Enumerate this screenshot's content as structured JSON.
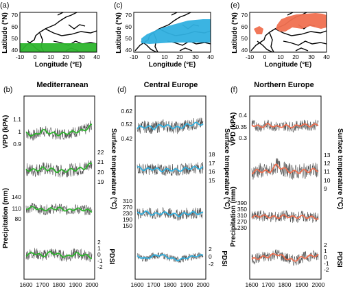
{
  "panels": [
    {
      "map_label": "(a)",
      "series_label": "(b)",
      "title": "Mediterranean",
      "color": "#2db52d",
      "vpd_ticks": [
        "1.1",
        "1",
        "0.9"
      ],
      "temp_ticks": [
        "22",
        "21",
        "20",
        "19"
      ],
      "precip_ticks": [
        "140",
        "110",
        "80"
      ],
      "pdsi_ticks": [
        "2",
        "1",
        "0",
        "-1",
        "-2"
      ]
    },
    {
      "map_label": "(c)",
      "series_label": "(d)",
      "title": "Central Europe",
      "color": "#30b0e0",
      "vpd_ticks": [
        "0.62",
        "0.52",
        "0.42"
      ],
      "temp_ticks": [
        "18",
        "17",
        "16",
        "15"
      ],
      "precip_ticks": [
        "310",
        "270",
        "230",
        "190",
        "150"
      ],
      "pdsi_ticks": [
        "2",
        "0",
        "-2"
      ]
    },
    {
      "map_label": "(e)",
      "series_label": "(f)",
      "title": "Northern Europe",
      "color": "#f07050",
      "vpd_ticks": [
        "0.4",
        "0.35",
        "0.3"
      ],
      "temp_ticks": [
        "13",
        "12",
        "11",
        "10",
        "9"
      ],
      "precip_ticks": [
        "390",
        "350",
        "310",
        "270",
        "230"
      ],
      "pdsi_ticks": [
        "2",
        "1",
        "0",
        "-1",
        "-2"
      ]
    }
  ],
  "map_axes": {
    "lat_label": "Latitude (°N)",
    "lon_label": "Longitude (°E)",
    "lat_ticks": [
      "70",
      "60",
      "50",
      "40"
    ],
    "lon_ticks": [
      "-10",
      "0",
      "10",
      "20",
      "30",
      "40"
    ]
  },
  "series_axes": {
    "vpd_label": "VPD (kPA)",
    "temp_label": "Surface temperature (°C)",
    "precip_label": "Precipitation (mm)",
    "pdsi_label": "PDSI",
    "year_ticks": [
      "1600",
      "1700",
      "1800",
      "1900",
      "2000"
    ]
  },
  "chart_data": {
    "type": "line",
    "x_range": [
      1600,
      2000
    ],
    "series": [
      {
        "region": "Mediterranean",
        "variable": "VPD (kPA)",
        "x": [
          1600,
          1650,
          1700,
          1750,
          1800,
          1850,
          1900,
          1950,
          2000
        ],
        "y": [
          1.0,
          0.98,
          1.02,
          1.0,
          0.99,
          1.0,
          1.01,
          1.02,
          1.06
        ]
      },
      {
        "region": "Mediterranean",
        "variable": "Surface temperature (°C)",
        "x": [
          1600,
          1650,
          1700,
          1750,
          1800,
          1850,
          1900,
          1950,
          2000
        ],
        "y": [
          20.3,
          20.2,
          20.4,
          20.3,
          20.1,
          20.2,
          20.3,
          20.4,
          20.9
        ]
      },
      {
        "region": "Mediterranean",
        "variable": "Precipitation (mm)",
        "x": [
          1600,
          1650,
          1700,
          1750,
          1800,
          1850,
          1900,
          1950,
          2000
        ],
        "y": [
          110,
          112,
          105,
          108,
          110,
          104,
          108,
          106,
          102
        ]
      },
      {
        "region": "Mediterranean",
        "variable": "PDSI",
        "x": [
          1600,
          1650,
          1700,
          1750,
          1800,
          1850,
          1900,
          1950,
          2000
        ],
        "y": [
          0,
          0.3,
          -0.2,
          0.4,
          0,
          -0.3,
          0.2,
          0,
          -0.4
        ]
      },
      {
        "region": "Central Europe",
        "variable": "VPD (kPA)",
        "x": [
          1600,
          1650,
          1700,
          1750,
          1800,
          1850,
          1900,
          1950,
          2000
        ],
        "y": [
          0.5,
          0.51,
          0.5,
          0.52,
          0.51,
          0.5,
          0.52,
          0.53,
          0.53
        ]
      },
      {
        "region": "Central Europe",
        "variable": "Surface temperature (°C)",
        "x": [
          1600,
          1650,
          1700,
          1750,
          1800,
          1850,
          1900,
          1950,
          2000
        ],
        "y": [
          16.5,
          16.3,
          16.4,
          16.2,
          16.3,
          16.2,
          16.4,
          16.5,
          16.5
        ]
      },
      {
        "region": "Central Europe",
        "variable": "Precipitation (mm)",
        "x": [
          1600,
          1650,
          1700,
          1750,
          1800,
          1850,
          1900,
          1950,
          2000
        ],
        "y": [
          230,
          240,
          225,
          235,
          230,
          220,
          232,
          235,
          230
        ]
      },
      {
        "region": "Central Europe",
        "variable": "PDSI",
        "x": [
          1600,
          1650,
          1700,
          1750,
          1800,
          1850,
          1900,
          1950,
          2000
        ],
        "y": [
          0.2,
          -0.5,
          0.3,
          0.5,
          -0.3,
          -0.8,
          -0.2,
          0.2,
          0.4
        ]
      },
      {
        "region": "Northern Europe",
        "variable": "VPD (kPA)",
        "x": [
          1600,
          1650,
          1700,
          1750,
          1800,
          1850,
          1900,
          1950,
          2000
        ],
        "y": [
          0.36,
          0.35,
          0.36,
          0.35,
          0.355,
          0.35,
          0.36,
          0.355,
          0.36
        ]
      },
      {
        "region": "Northern Europe",
        "variable": "Surface temperature (°C)",
        "x": [
          1600,
          1650,
          1700,
          1750,
          1800,
          1850,
          1900,
          1950,
          2000
        ],
        "y": [
          11,
          11.2,
          11,
          11.8,
          11.3,
          11,
          11.1,
          11.2,
          11.3
        ]
      },
      {
        "region": "Northern Europe",
        "variable": "Precipitation (mm)",
        "x": [
          1600,
          1650,
          1700,
          1750,
          1800,
          1850,
          1900,
          1950,
          2000
        ],
        "y": [
          300,
          310,
          305,
          300,
          310,
          300,
          305,
          300,
          295
        ]
      },
      {
        "region": "Northern Europe",
        "variable": "PDSI",
        "x": [
          1600,
          1650,
          1700,
          1750,
          1800,
          1850,
          1900,
          1950,
          2000
        ],
        "y": [
          -0.3,
          0,
          0.2,
          0.6,
          0,
          -0.5,
          0,
          0.2,
          0.4
        ]
      }
    ]
  }
}
